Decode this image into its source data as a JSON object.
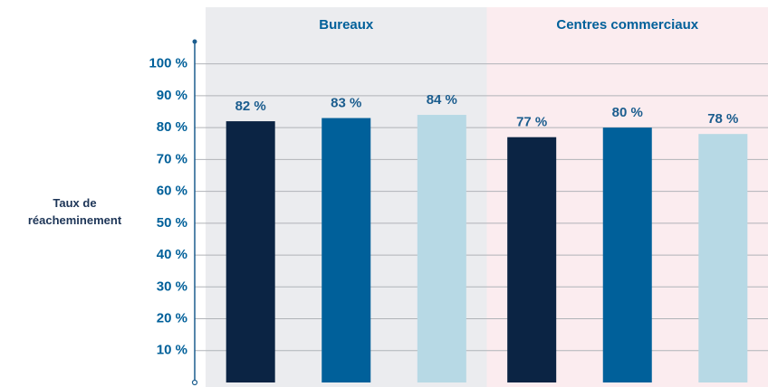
{
  "chart_data": {
    "type": "bar",
    "y_label": "Taux de réacheminement",
    "categories": [
      "Bureaux",
      "Centres commerciaux"
    ],
    "series": [
      {
        "color": "#0b2444",
        "values": [
          82,
          77
        ],
        "value_labels": [
          "82 %",
          "77 %"
        ]
      },
      {
        "color": "#00609a",
        "values": [
          83,
          80
        ],
        "value_labels": [
          "83 %",
          "80 %"
        ]
      },
      {
        "color": "#b7d9e5",
        "values": [
          84,
          78
        ],
        "value_labels": [
          "84 %",
          "78 %"
        ]
      }
    ],
    "category_backgrounds": [
      "#ebecef",
      "#fbecef"
    ],
    "ylim": [
      0,
      107
    ],
    "yticks": [
      {
        "value": 10,
        "label": "10 %"
      },
      {
        "value": 20,
        "label": "20 %"
      },
      {
        "value": 30,
        "label": "30 %"
      },
      {
        "value": 40,
        "label": "40 %"
      },
      {
        "value": 50,
        "label": "50 %"
      },
      {
        "value": 60,
        "label": "60 %"
      },
      {
        "value": 70,
        "label": "70 %"
      },
      {
        "value": 80,
        "label": "80 %"
      },
      {
        "value": 90,
        "label": "90 %"
      },
      {
        "value": 100,
        "label": "100 %"
      }
    ],
    "grid": true
  }
}
